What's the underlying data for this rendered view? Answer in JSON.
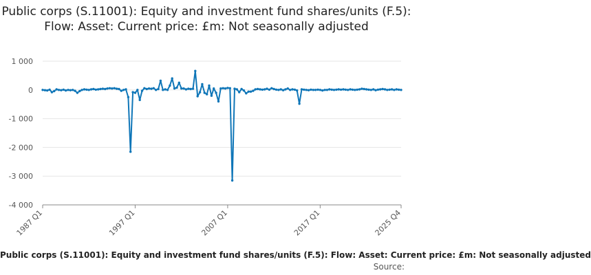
{
  "chart_data": {
    "type": "line",
    "title": "Public corps (S.11001): Equity and investment fund shares/units (F.5): Flow: Asset: Current price: £m: Not seasonally adjusted",
    "legend_text": "Public corps (S.11001): Equity and investment fund shares/units (F.5): Flow: Asset: Current price: £m: Not seasonally adjusted",
    "source_label": "Source:",
    "xlabel": "",
    "ylabel": "",
    "ylim": [
      -4000,
      1000
    ],
    "y_ticks": [
      1000,
      0,
      -1000,
      -2000,
      -3000,
      -4000
    ],
    "y_tick_labels": [
      "1 000",
      "0",
      "-1 000",
      "-2 000",
      "-3 000",
      "-4 000"
    ],
    "x_range": [
      1987.0,
      2025.75
    ],
    "x_ticks": [
      1987.0,
      1997.0,
      2007.0,
      2017.0,
      2025.75
    ],
    "x_tick_labels": [
      "1987 Q1",
      "1997 Q1",
      "2007 Q1",
      "2017 Q1",
      "2025 Q4"
    ],
    "grid": true,
    "legend": "bottom",
    "color": "#0f76b8",
    "series": [
      {
        "x": [
          1987.0,
          1987.25,
          1987.5,
          1987.75,
          1988.0,
          1988.25,
          1988.5,
          1988.75,
          1989.0,
          1989.25,
          1989.5,
          1989.75,
          1990.0,
          1990.25,
          1990.5,
          1990.75,
          1991.0,
          1991.25,
          1991.5,
          1991.75,
          1992.0,
          1992.25,
          1992.5,
          1992.75,
          1993.0,
          1993.25,
          1993.5,
          1993.75,
          1994.0,
          1994.25,
          1994.5,
          1994.75,
          1995.0,
          1995.25,
          1995.5,
          1995.75,
          1996.0,
          1996.25,
          1996.5,
          1996.75,
          1997.0,
          1997.25,
          1997.5,
          1997.75,
          1998.0,
          1998.25,
          1998.5,
          1998.75,
          1999.0,
          1999.25,
          1999.5,
          1999.75,
          2000.0,
          2000.25,
          2000.5,
          2000.75,
          2001.0,
          2001.25,
          2001.5,
          2001.75,
          2002.0,
          2002.25,
          2002.5,
          2002.75,
          2003.0,
          2003.25,
          2003.5,
          2003.75,
          2004.0,
          2004.25,
          2004.5,
          2004.75,
          2005.0,
          2005.25,
          2005.5,
          2005.75,
          2006.0,
          2006.25,
          2006.5,
          2006.75,
          2007.0,
          2007.25,
          2007.5,
          2007.75,
          2008.0,
          2008.25,
          2008.5,
          2008.75,
          2009.0,
          2009.25,
          2009.5,
          2009.75,
          2010.0,
          2010.25,
          2010.5,
          2010.75,
          2011.0,
          2011.25,
          2011.5,
          2011.75,
          2012.0,
          2012.25,
          2012.5,
          2012.75,
          2013.0,
          2013.25,
          2013.5,
          2013.75,
          2014.0,
          2014.25,
          2014.5,
          2014.75,
          2015.0,
          2015.25,
          2015.5,
          2015.75,
          2016.0,
          2016.25,
          2016.5,
          2016.75,
          2017.0,
          2017.25,
          2017.5,
          2017.75,
          2018.0,
          2018.25,
          2018.5,
          2018.75,
          2019.0,
          2019.25,
          2019.5,
          2019.75,
          2020.0,
          2020.25,
          2020.5,
          2020.75,
          2021.0,
          2021.25,
          2021.5,
          2021.75,
          2022.0,
          2022.25,
          2022.5,
          2022.75,
          2023.0,
          2023.25,
          2023.5,
          2023.75,
          2024.0,
          2024.25,
          2024.5,
          2024.75,
          2025.0,
          2025.25,
          2025.5,
          2025.75
        ],
        "values": [
          0,
          -10,
          -20,
          10,
          -80,
          -40,
          20,
          0,
          -10,
          10,
          -20,
          0,
          -10,
          0,
          -30,
          -100,
          -40,
          0,
          20,
          10,
          0,
          20,
          30,
          10,
          20,
          30,
          40,
          30,
          50,
          60,
          50,
          60,
          40,
          30,
          -30,
          0,
          20,
          -250,
          -2150,
          -80,
          -100,
          0,
          -350,
          -30,
          60,
          30,
          50,
          40,
          60,
          0,
          30,
          320,
          0,
          20,
          0,
          150,
          400,
          50,
          80,
          250,
          50,
          50,
          20,
          40,
          30,
          40,
          660,
          -220,
          -80,
          200,
          -100,
          -150,
          150,
          -200,
          50,
          -100,
          -400,
          50,
          60,
          50,
          70,
          60,
          -3150,
          40,
          20,
          -80,
          30,
          -20,
          -120,
          -60,
          -60,
          -30,
          20,
          30,
          20,
          10,
          20,
          40,
          10,
          60,
          30,
          10,
          0,
          20,
          -10,
          20,
          50,
          0,
          20,
          10,
          -20,
          -480,
          20,
          10,
          0,
          -10,
          10,
          0,
          0,
          10,
          0,
          -20,
          0,
          0,
          20,
          10,
          0,
          10,
          20,
          10,
          20,
          10,
          0,
          20,
          10,
          0,
          10,
          20,
          40,
          30,
          20,
          10,
          0,
          20,
          -10,
          10,
          20,
          30,
          20,
          0,
          10,
          20,
          0,
          20,
          10,
          0
        ]
      }
    ]
  }
}
